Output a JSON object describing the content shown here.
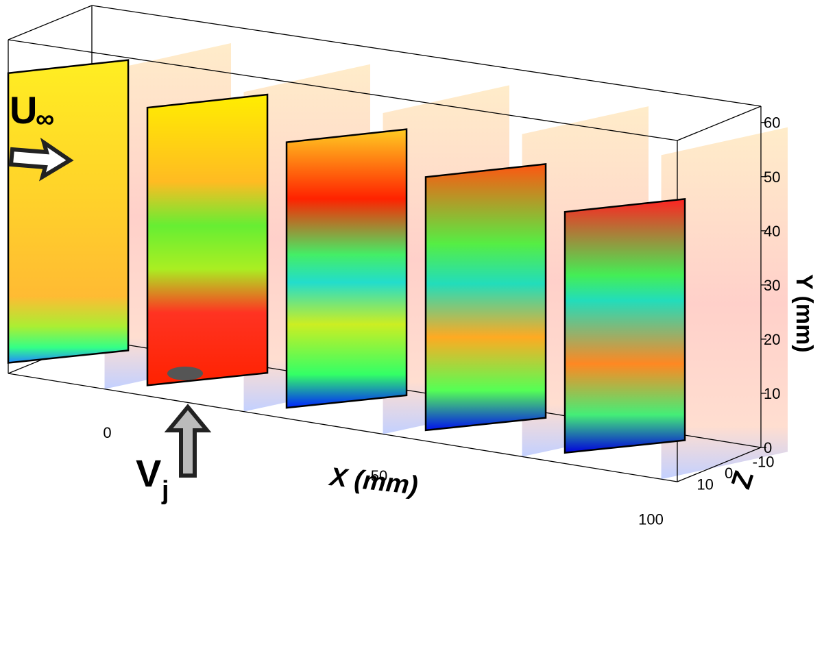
{
  "chart_data": {
    "type": "heatmap",
    "projection": "3d-perspective",
    "title": "",
    "x_axis": {
      "label": "X (mm)",
      "ticks": [
        0,
        50,
        100
      ],
      "range": [
        -19,
        106
      ]
    },
    "y_axis": {
      "label": "Y (mm)",
      "ticks": [
        0,
        10,
        20,
        30,
        40,
        50,
        60
      ],
      "range": [
        0,
        63
      ]
    },
    "z_axis": {
      "label": "Z",
      "ticks": [
        10,
        0,
        -10
      ],
      "range": [
        15,
        -15
      ]
    },
    "slices": [
      {
        "x_mm": -19,
        "dominant": "yellow"
      },
      {
        "x_mm": 7,
        "dominant": "yellow-green-red"
      },
      {
        "x_mm": 33,
        "dominant": "red-green-cyan"
      },
      {
        "x_mm": 59,
        "dominant": "orange-green-blue"
      },
      {
        "x_mm": 85,
        "dominant": "red-green-blue"
      }
    ],
    "colormap": [
      "#0000ff",
      "#00ffff",
      "#00ff00",
      "#ffff00",
      "#ff0000"
    ],
    "annotations": {
      "freestream_symbol": "U",
      "freestream_subscript": "∞",
      "jet_symbol": "V",
      "jet_subscript": "j"
    },
    "grid": false,
    "legend": "none"
  },
  "icons": {
    "freestream": "freestream-arrow-icon",
    "jet": "jet-arrow-icon"
  }
}
